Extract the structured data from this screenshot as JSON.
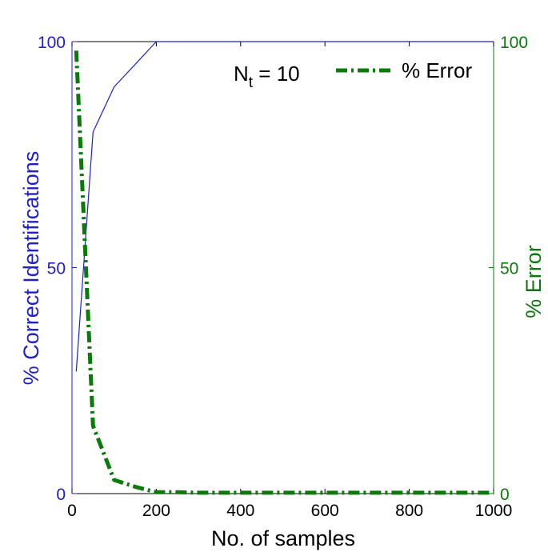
{
  "chart_data": {
    "type": "line",
    "x": [
      10,
      50,
      100,
      150,
      200,
      250,
      300,
      400,
      500,
      600,
      700,
      800,
      900,
      1000
    ],
    "xlabel": "No. of samples",
    "xlim": [
      0,
      1000
    ],
    "xticks": [
      "0",
      "200",
      "400",
      "600",
      "800",
      "1000"
    ],
    "xtick_values": [
      0,
      200,
      400,
      600,
      800,
      1000
    ],
    "y_left": {
      "label": "% Correct Identifications",
      "lim": [
        0,
        100
      ],
      "ticks": [
        "0",
        "50",
        "100"
      ],
      "tick_values": [
        0,
        50,
        100
      ],
      "color": "#1f1fcc"
    },
    "y_right": {
      "label": "% Error",
      "lim": [
        0,
        100
      ],
      "ticks": [
        "0",
        "50",
        "100"
      ],
      "tick_values": [
        0,
        50,
        100
      ],
      "color": "#0a7a0a"
    },
    "series": [
      {
        "axis": "left",
        "style": "solid",
        "color": "#1f1fcc",
        "values": [
          27,
          80,
          90,
          95,
          100,
          100,
          100,
          100,
          100,
          100,
          100,
          100,
          100,
          100
        ]
      },
      {
        "name": "% Error",
        "axis": "right",
        "style": "dash-dot",
        "color": "#0a7a0a",
        "values": [
          98,
          15,
          3,
          1.5,
          0.3,
          0.3,
          0.2,
          0.2,
          0.2,
          0.2,
          0.2,
          0.2,
          0.2,
          0.2
        ]
      }
    ],
    "annotation": {
      "base": "N",
      "sub": "t",
      "rest": " = 10"
    },
    "legend_position": "top-right",
    "grid": false
  }
}
